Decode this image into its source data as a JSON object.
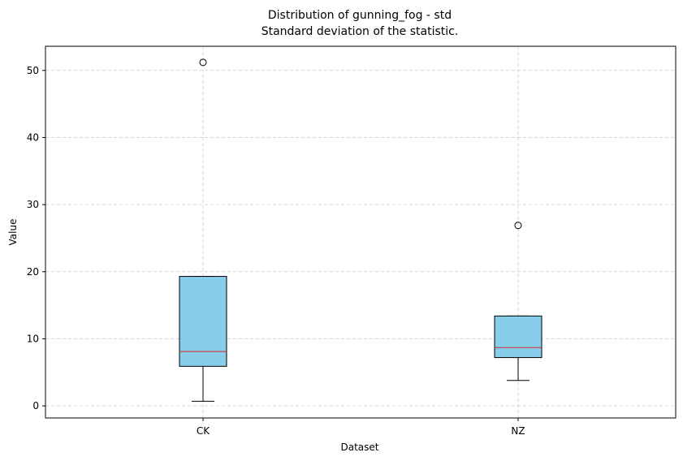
{
  "chart_data": {
    "type": "box",
    "title": "Distribution of gunning_fog - std",
    "subtitle": "Standard deviation of the statistic.",
    "xlabel": "Dataset",
    "ylabel": "Value",
    "categories": [
      "CK",
      "NZ"
    ],
    "ylim": [
      -1.8,
      53.6
    ],
    "yticks": [
      0,
      10,
      20,
      30,
      40,
      50
    ],
    "grid": true,
    "boxes": [
      {
        "category": "CK",
        "whisker_low": 0.7,
        "q1": 5.9,
        "median": 8.1,
        "q3": 19.3,
        "whisker_high": 19.3,
        "outliers": [
          51.2
        ]
      },
      {
        "category": "NZ",
        "whisker_low": 3.8,
        "q1": 7.2,
        "median": 8.7,
        "q3": 13.4,
        "whisker_high": 13.4,
        "outliers": [
          26.9
        ]
      }
    ],
    "colors": {
      "box_fill": "#87CEEB",
      "median": "#d62728",
      "edge": "#000000",
      "grid": "#cccccc"
    }
  }
}
